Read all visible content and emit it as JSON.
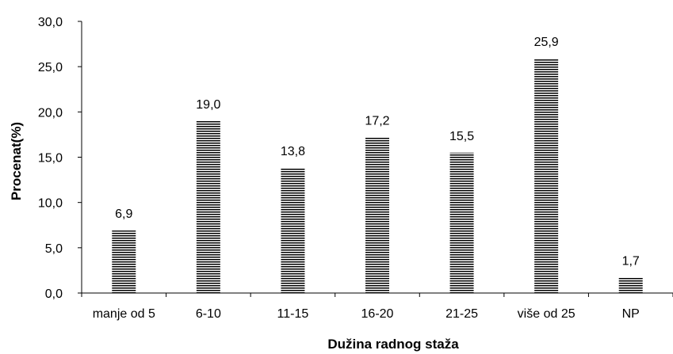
{
  "chart_data": {
    "type": "bar",
    "title": "",
    "xlabel": "Dužina radnog staža",
    "ylabel": "Procenat(%)",
    "categories": [
      "manje od 5",
      "6-10",
      "11-15",
      "16-20",
      "21-25",
      "više od 25",
      "NP"
    ],
    "values": [
      6.9,
      19.0,
      13.8,
      17.2,
      15.5,
      25.9,
      1.7
    ],
    "data_labels": [
      "6,9",
      "19,0",
      "13,8",
      "17,2",
      "15,5",
      "25,9",
      "1,7"
    ],
    "yticks": [
      0,
      5,
      10,
      15,
      20,
      25,
      30
    ],
    "ytick_labels": [
      "0,0",
      "5,0",
      "10,0",
      "15,0",
      "20,0",
      "25,0",
      "30,0"
    ],
    "ylim": [
      0,
      30
    ],
    "grid": false,
    "legend": "none",
    "bar_fill": "horizontal-stripes",
    "bar_color": "#000000"
  }
}
